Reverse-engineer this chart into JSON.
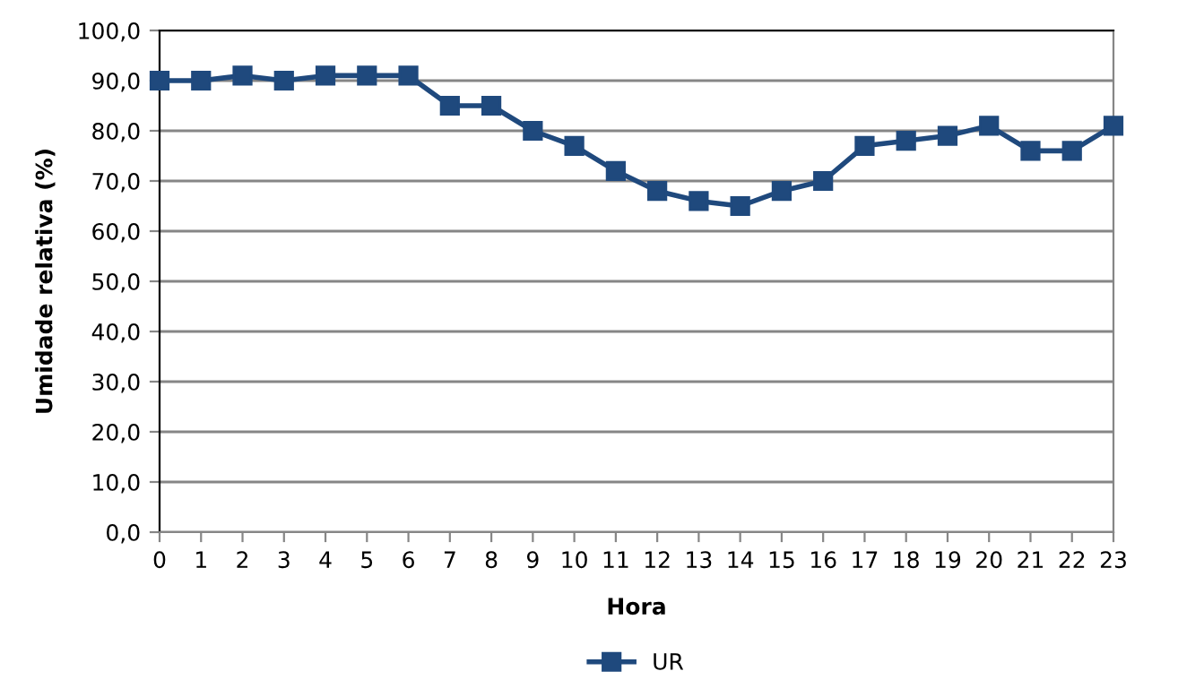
{
  "chart_data": {
    "type": "line",
    "xlabel": "Hora",
    "ylabel": "Umidade relativa (%)",
    "categories": [
      "0",
      "1",
      "2",
      "3",
      "4",
      "5",
      "6",
      "7",
      "8",
      "9",
      "10",
      "11",
      "12",
      "13",
      "14",
      "15",
      "16",
      "17",
      "18",
      "19",
      "20",
      "21",
      "22",
      "23"
    ],
    "series": [
      {
        "name": "UR",
        "color": "#1f497d",
        "values": [
          90,
          90,
          91,
          90,
          91,
          91,
          91,
          85,
          85,
          80,
          77,
          72,
          68,
          66,
          65,
          68,
          70,
          77,
          78,
          79,
          81,
          76,
          76,
          81
        ]
      }
    ],
    "ylim": [
      0,
      100
    ],
    "yticks": [
      {
        "value": 0,
        "label": "0,0"
      },
      {
        "value": 10,
        "label": "10,0"
      },
      {
        "value": 20,
        "label": "20,0"
      },
      {
        "value": 30,
        "label": "30,0"
      },
      {
        "value": 40,
        "label": "40,0"
      },
      {
        "value": 50,
        "label": "50,0"
      },
      {
        "value": 60,
        "label": "60,0"
      },
      {
        "value": 70,
        "label": "70,0"
      },
      {
        "value": 80,
        "label": "80,0"
      },
      {
        "value": 90,
        "label": "90,0"
      },
      {
        "value": 100,
        "label": "100,0"
      }
    ],
    "grid": "y",
    "legend": "bottom",
    "marker": "square",
    "line_style": "solid"
  }
}
